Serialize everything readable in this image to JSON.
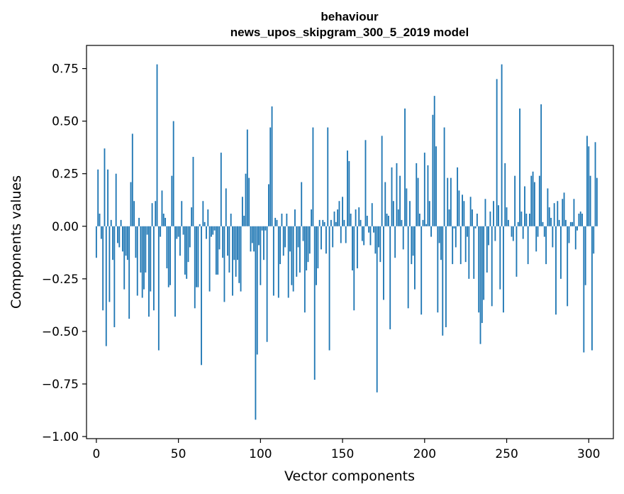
{
  "chart_data": {
    "type": "bar",
    "title": "behaviour",
    "subtitle": "news_upos_skipgram_300_5_2019 model",
    "xlabel": "Vector components",
    "ylabel": "Components values",
    "xlim": [
      -6,
      315
    ],
    "ylim": [
      -1.01,
      0.86
    ],
    "xticks": [
      0,
      50,
      100,
      150,
      200,
      250,
      300
    ],
    "yticks": [
      -1.0,
      -0.75,
      -0.5,
      -0.25,
      0.0,
      0.25,
      0.5,
      0.75
    ],
    "xtick_labels": [
      "0",
      "50",
      "100",
      "150",
      "200",
      "250",
      "300"
    ],
    "ytick_labels": [
      "−1.00",
      "−0.75",
      "−0.50",
      "−0.25",
      "0.00",
      "0.25",
      "0.50",
      "0.75"
    ],
    "grid": false,
    "bar_color": "#1f77b4",
    "values": [
      -0.15,
      0.27,
      0.06,
      -0.06,
      -0.4,
      0.37,
      -0.57,
      0.27,
      -0.36,
      0.03,
      -0.16,
      -0.48,
      0.25,
      -0.08,
      -0.1,
      0.03,
      -0.12,
      -0.3,
      -0.14,
      -0.16,
      -0.44,
      0.21,
      0.44,
      0.12,
      -0.15,
      -0.33,
      0.04,
      -0.22,
      -0.34,
      -0.3,
      -0.22,
      -0.04,
      -0.43,
      -0.31,
      0.11,
      -0.4,
      0.12,
      0.77,
      -0.59,
      -0.05,
      0.17,
      0.06,
      0.04,
      -0.2,
      -0.29,
      -0.28,
      0.24,
      0.5,
      -0.43,
      -0.06,
      -0.05,
      -0.14,
      0.12,
      -0.04,
      -0.23,
      -0.25,
      -0.17,
      -0.1,
      0.09,
      0.33,
      -0.39,
      -0.29,
      -0.29,
      0.01,
      -0.66,
      0.12,
      0.02,
      -0.06,
      0.08,
      -0.31,
      -0.05,
      -0.04,
      -0.02,
      -0.23,
      -0.23,
      -0.11,
      0.35,
      -0.15,
      -0.36,
      0.18,
      -0.14,
      -0.22,
      0.06,
      -0.33,
      -0.16,
      -0.24,
      -0.16,
      -0.27,
      -0.31,
      0.14,
      0.05,
      0.25,
      0.46,
      0.23,
      -0.12,
      -0.08,
      -0.12,
      -0.92,
      -0.61,
      -0.09,
      -0.28,
      -0.02,
      -0.16,
      -0.02,
      -0.55,
      0.2,
      0.47,
      0.57,
      -0.33,
      0.04,
      0.03,
      -0.34,
      -0.18,
      0.06,
      -0.14,
      -0.1,
      0.06,
      -0.34,
      -0.12,
      -0.28,
      -0.31,
      0.08,
      -0.24,
      -0.1,
      -0.22,
      0.21,
      -0.07,
      -0.41,
      -0.21,
      -0.17,
      -0.13,
      0.08,
      0.47,
      -0.73,
      -0.28,
      -0.2,
      0.03,
      -0.11,
      0.03,
      0.02,
      -0.13,
      0.47,
      -0.59,
      0.03,
      -0.1,
      0.07,
      0.02,
      0.08,
      0.12,
      -0.08,
      0.14,
      0.03,
      -0.08,
      0.36,
      0.31,
      0.06,
      -0.21,
      -0.4,
      0.08,
      -0.2,
      0.09,
      0.03,
      -0.07,
      -0.09,
      0.41,
      0.05,
      -0.03,
      -0.09,
      0.11,
      -0.03,
      -0.13,
      -0.79,
      -0.1,
      -0.17,
      0.43,
      -0.35,
      0.21,
      0.06,
      0.05,
      -0.49,
      0.28,
      0.12,
      -0.15,
      0.3,
      0.08,
      0.24,
      0.03,
      -0.11,
      0.56,
      0.18,
      -0.39,
      0.12,
      -0.18,
      -0.14,
      -0.3,
      0.3,
      0.23,
      0.06,
      -0.42,
      0.03,
      0.35,
      0.01,
      0.29,
      0.12,
      -0.05,
      0.53,
      0.62,
      0.38,
      -0.41,
      -0.08,
      -0.16,
      -0.52,
      0.47,
      -0.48,
      0.23,
      0.08,
      0.23,
      -0.18,
      -0.01,
      -0.1,
      0.28,
      0.17,
      -0.18,
      0.15,
      0.12,
      -0.17,
      -0.05,
      -0.25,
      0.14,
      0.08,
      -0.25,
      -0.01,
      0.06,
      -0.41,
      -0.56,
      -0.46,
      -0.35,
      0.13,
      -0.22,
      -0.09,
      0.07,
      -0.38,
      0.12,
      -0.07,
      0.7,
      0.1,
      -0.3,
      0.77,
      -0.41,
      0.3,
      0.09,
      0.03,
      0.0,
      -0.05,
      -0.07,
      0.24,
      -0.24,
      0.02,
      0.56,
      0.07,
      -0.06,
      0.19,
      0.06,
      -0.18,
      0.06,
      0.24,
      0.26,
      0.21,
      -0.12,
      -0.05,
      0.24,
      0.58,
      0.02,
      -0.05,
      -0.18,
      0.18,
      0.09,
      0.04,
      -0.1,
      0.11,
      -0.42,
      0.12,
      0.03,
      -0.25,
      0.13,
      0.16,
      0.03,
      -0.38,
      -0.08,
      0.02,
      0.02,
      0.13,
      -0.11,
      -0.02,
      0.06,
      0.07,
      0.06,
      -0.6,
      -0.28,
      0.43,
      0.38,
      0.24,
      -0.59,
      -0.13,
      0.4,
      0.23
    ]
  }
}
